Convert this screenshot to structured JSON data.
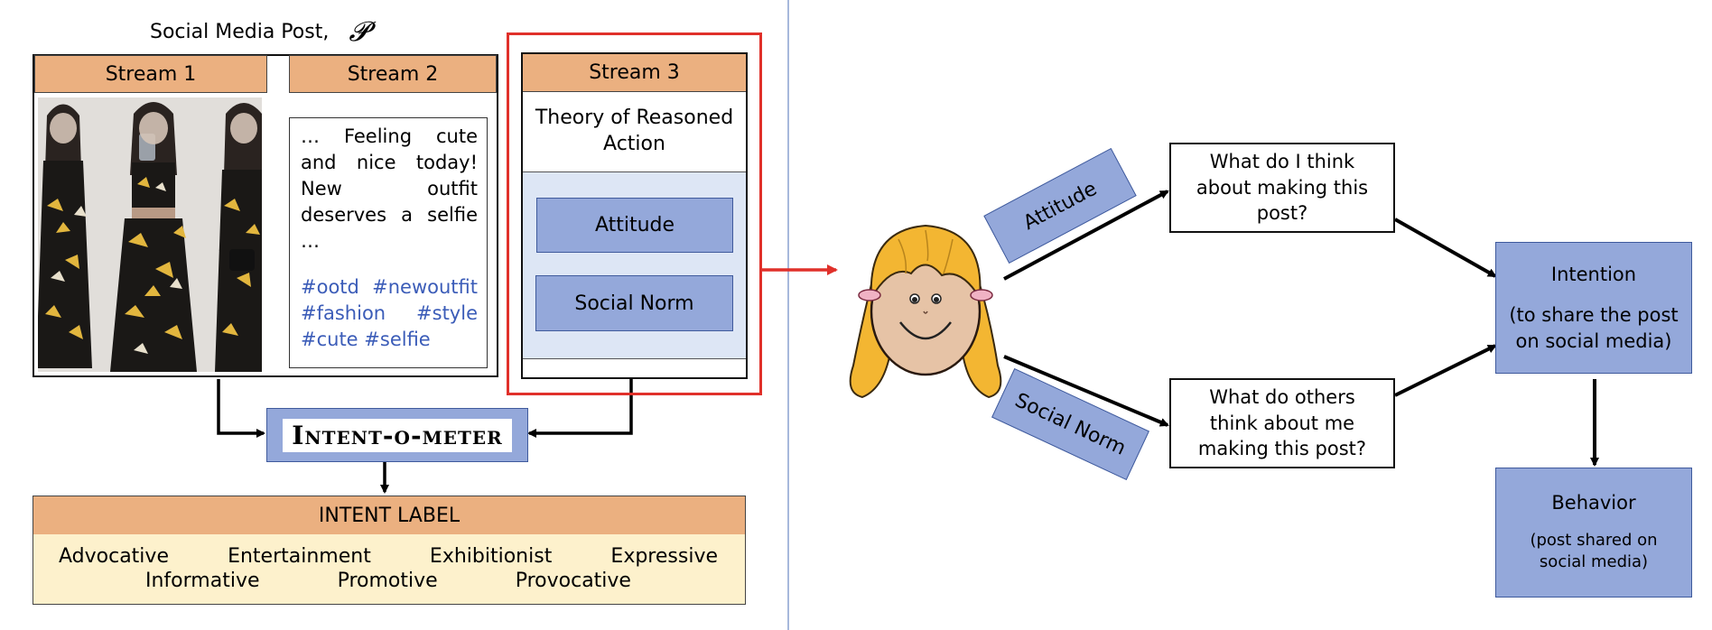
{
  "left": {
    "post_caption": "Social Media Post,",
    "post_symbol": "𝓟",
    "stream1": {
      "label": "Stream 1"
    },
    "stream2": {
      "label": "Stream 2",
      "text_lines": [
        "… Feeling cute",
        "and nice today!",
        "New outfit",
        "deserves a selfie",
        "…"
      ],
      "hashtags": [
        "#ootd #newoutfit",
        "#fashion #style",
        "#cute #selfie"
      ]
    },
    "stream3": {
      "label": "Stream 3",
      "theory": "Theory of Reasoned Action",
      "attitude": "Attitude",
      "social_norm": "Social Norm"
    },
    "meter": "Intent-o-meter",
    "intent": {
      "header": "INTENT LABEL",
      "row1": [
        "Advocative",
        "Entertainment",
        "Exhibitionist",
        "Expressive"
      ],
      "row2": [
        "Informative",
        "Promotive",
        "Provocative"
      ]
    }
  },
  "right": {
    "attitude_tag": "Attitude",
    "social_norm_tag": "Social Norm",
    "q1": "What do I think about making this post?",
    "q2": "What do others think about me making this post?",
    "intention_title": "Intention",
    "intention_sub": "(to share the post on social media)",
    "behavior_title": "Behavior",
    "behavior_sub": "(post shared on social media)"
  },
  "colors": {
    "orange_header": "#ebb080",
    "blue_box": "#94a8da",
    "light_blue": "#dde6f5",
    "cream": "#fdf1cc",
    "red_outline": "#e0302a",
    "hashtag_blue": "#3b5cb8"
  }
}
